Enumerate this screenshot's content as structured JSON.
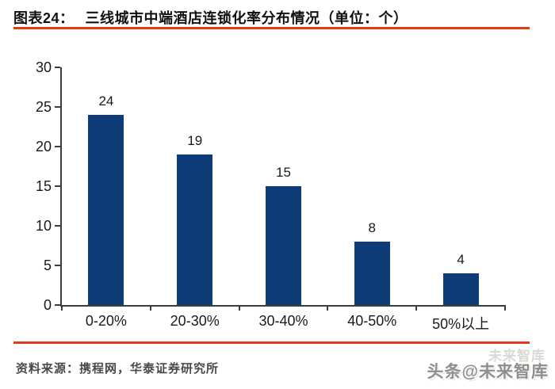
{
  "header": {
    "title_prefix": "图表24：",
    "title_text": "三线城市中端酒店连锁化率分布情况（单位：个）"
  },
  "chart_data": {
    "type": "bar",
    "title": "三线城市中端酒店连锁化率分布情况",
    "unit": "个",
    "categories": [
      "0-20%",
      "20-30%",
      "30-40%",
      "40-50%",
      "50%以上"
    ],
    "values": [
      24,
      19,
      15,
      8,
      4
    ],
    "xlabel": "",
    "ylabel": "",
    "ylim": [
      0,
      30
    ],
    "yticks": [
      0,
      5,
      10,
      15,
      20,
      25,
      30
    ],
    "grid": false,
    "legend": "none",
    "bar_color": "#0e3c78"
  },
  "footer": {
    "source": "资料来源：携程网，华泰证券研究所"
  },
  "watermark": {
    "ghost": "未来智库",
    "main": "头条@未来智库"
  },
  "colors": {
    "bar": "#0e3c78",
    "rule": "#e43a19",
    "axis": "#3d3d3d",
    "text": "#1a1a1a",
    "source_text": "#4a4a4a",
    "watermark": "#8f8f8f"
  }
}
